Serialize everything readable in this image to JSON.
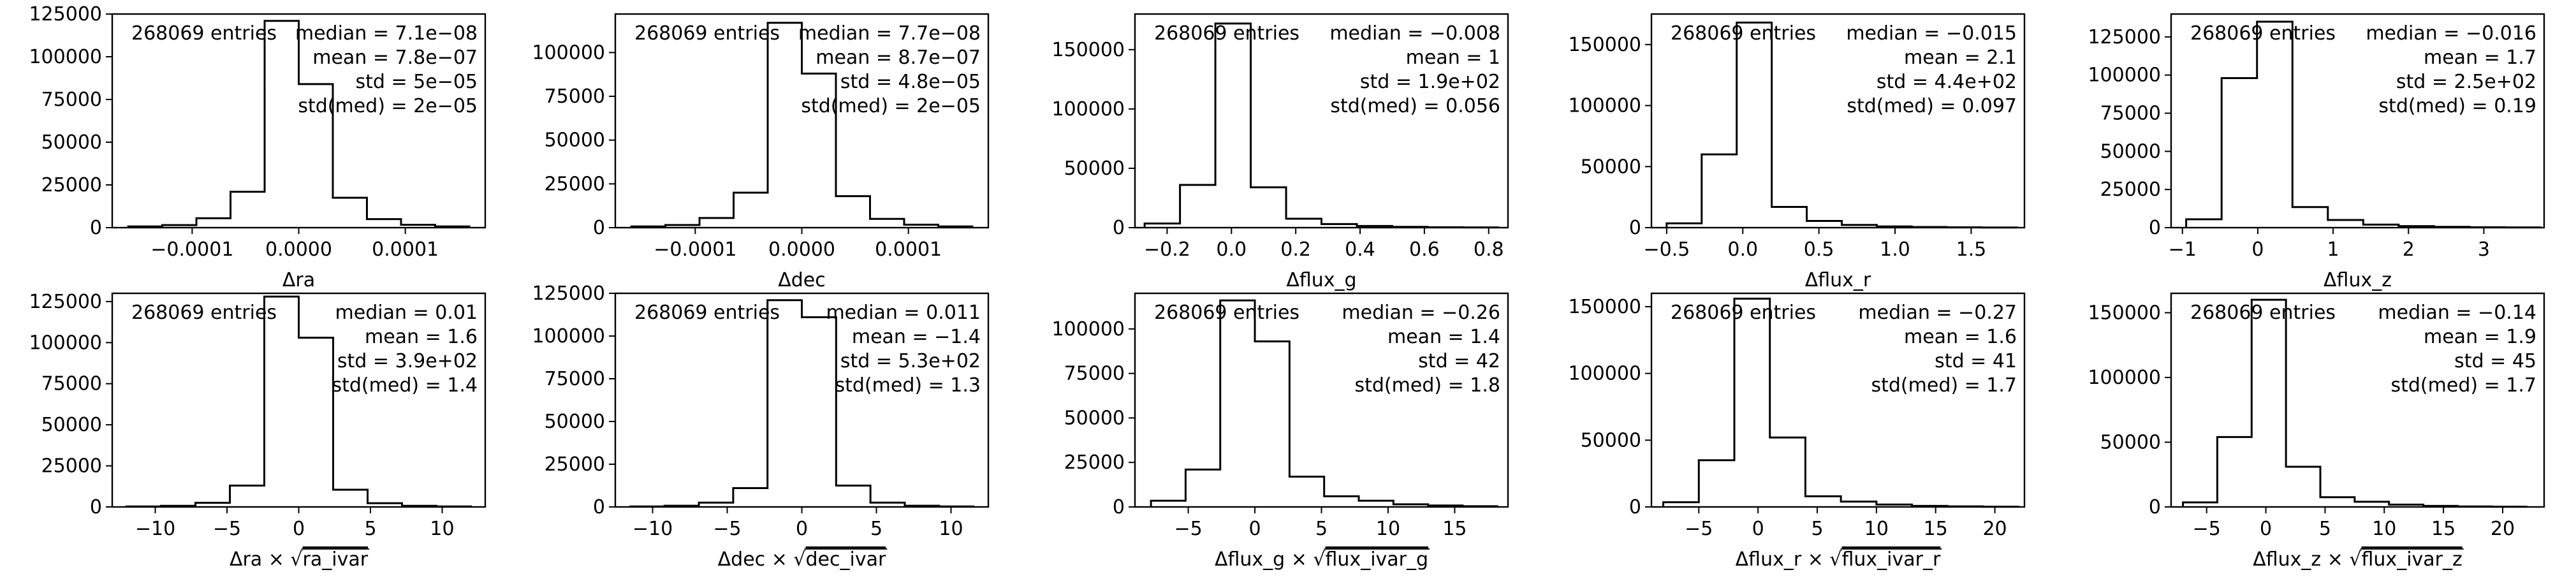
{
  "chart_data": [
    {
      "type": "bar",
      "name": "ra",
      "x_label": "Δra",
      "x_label_sqrt": "",
      "entries": "268069 entries",
      "stats": [
        "median = 7.1e−08",
        "mean = 7.8e−07",
        "std = 5e−05",
        "std(med) = 2e−05"
      ],
      "xlim": [
        -0.000175,
        0.000175
      ],
      "ylim": [
        0,
        125000
      ],
      "x_ticks": [
        -0.0001,
        0,
        0.0001
      ],
      "x_tick_labels": [
        "−0.0001",
        "0.0000",
        "0.0001"
      ],
      "y_ticks": [
        0,
        25000,
        50000,
        75000,
        100000,
        125000
      ],
      "y_tick_labels": [
        "0",
        "25000",
        "50000",
        "75000",
        "100000",
        "125000"
      ],
      "bin_edges": [
        -0.00016,
        -0.000128,
        -9.6e-05,
        -6.4e-05,
        -3.2e-05,
        0,
        3.2e-05,
        6.4e-05,
        9.6e-05,
        0.000128,
        0.00016
      ],
      "counts": [
        700,
        1500,
        5500,
        21000,
        121000,
        84000,
        17500,
        5000,
        1700,
        700
      ]
    },
    {
      "type": "bar",
      "name": "dec",
      "x_label": "Δdec",
      "x_label_sqrt": "",
      "entries": "268069 entries",
      "stats": [
        "median = 7.7e−08",
        "mean = 8.7e−07",
        "std = 4.8e−05",
        "std(med) = 2e−05"
      ],
      "xlim": [
        -0.000175,
        0.000175
      ],
      "ylim": [
        0,
        122000
      ],
      "x_ticks": [
        -0.0001,
        0,
        0.0001
      ],
      "x_tick_labels": [
        "−0.0001",
        "0.0000",
        "0.0001"
      ],
      "y_ticks": [
        0,
        25000,
        50000,
        75000,
        100000
      ],
      "y_tick_labels": [
        "0",
        "25000",
        "50000",
        "75000",
        "100000"
      ],
      "bin_edges": [
        -0.00016,
        -0.000128,
        -9.6e-05,
        -6.4e-05,
        -3.2e-05,
        0,
        3.2e-05,
        6.4e-05,
        9.6e-05,
        0.000128,
        0.00016
      ],
      "counts": [
        700,
        1500,
        5500,
        20000,
        117000,
        88000,
        18000,
        5000,
        1700,
        700
      ]
    },
    {
      "type": "bar",
      "name": "flux_g",
      "x_label": "Δflux_g",
      "x_label_sqrt": "",
      "entries": "268069 entries",
      "stats": [
        "median = −0.008",
        "mean = 1",
        "std = 1.9e+02",
        "std(med) = 0.056"
      ],
      "xlim": [
        -0.3,
        0.86
      ],
      "ylim": [
        0,
        180000
      ],
      "x_ticks": [
        -0.2,
        0,
        0.2,
        0.4,
        0.6,
        0.8
      ],
      "x_tick_labels": [
        "−0.2",
        "0.0",
        "0.2",
        "0.4",
        "0.6",
        "0.8"
      ],
      "y_ticks": [
        0,
        50000,
        100000,
        150000
      ],
      "y_tick_labels": [
        "0",
        "50000",
        "100000",
        "150000"
      ],
      "bin_edges": [
        -0.27,
        -0.16,
        -0.05,
        0.06,
        0.17,
        0.28,
        0.39,
        0.5,
        0.61,
        0.72,
        0.83
      ],
      "counts": [
        3500,
        36000,
        172000,
        34000,
        7500,
        3000,
        1400,
        700,
        350,
        200
      ]
    },
    {
      "type": "bar",
      "name": "flux_r",
      "x_label": "Δflux_r",
      "x_label_sqrt": "",
      "entries": "268069 entries",
      "stats": [
        "median = −0.015",
        "mean = 2.1",
        "std = 4.4e+02",
        "std(med) = 0.097"
      ],
      "xlim": [
        -0.6,
        1.85
      ],
      "ylim": [
        0,
        175000
      ],
      "x_ticks": [
        -0.5,
        0,
        0.5,
        1.0,
        1.5
      ],
      "x_tick_labels": [
        "−0.5",
        "0.0",
        "0.5",
        "1.0",
        "1.5"
      ],
      "y_ticks": [
        0,
        50000,
        100000,
        150000
      ],
      "y_tick_labels": [
        "0",
        "50000",
        "100000",
        "150000"
      ],
      "bin_edges": [
        -0.5,
        -0.27,
        -0.04,
        0.19,
        0.42,
        0.65,
        0.88,
        1.11,
        1.34,
        1.57,
        1.8
      ],
      "counts": [
        3500,
        60000,
        168000,
        17000,
        5500,
        2200,
        1000,
        500,
        250,
        150
      ]
    },
    {
      "type": "bar",
      "name": "flux_z",
      "x_label": "Δflux_z",
      "x_label_sqrt": "",
      "entries": "268069 entries",
      "stats": [
        "median = −0.016",
        "mean = 1.7",
        "std = 2.5e+02",
        "std(med) = 0.19"
      ],
      "xlim": [
        -1.15,
        3.8
      ],
      "ylim": [
        0,
        140000
      ],
      "x_ticks": [
        -1,
        0,
        1,
        2,
        3
      ],
      "x_tick_labels": [
        "−1",
        "0",
        "1",
        "2",
        "3"
      ],
      "y_ticks": [
        0,
        25000,
        50000,
        75000,
        100000,
        125000
      ],
      "y_tick_labels": [
        "0",
        "25000",
        "50000",
        "75000",
        "100000",
        "125000"
      ],
      "bin_edges": [
        -0.95,
        -0.48,
        -0.01,
        0.46,
        0.93,
        1.4,
        1.87,
        2.34,
        2.81,
        3.28,
        3.75
      ],
      "counts": [
        5500,
        98000,
        135000,
        13500,
        5000,
        2000,
        1000,
        500,
        250,
        150
      ]
    },
    {
      "type": "bar",
      "name": "ra_norm",
      "x_label": "Δra × ",
      "x_label_sqrt": "ra_ivar",
      "entries": "268069 entries",
      "stats": [
        "median = 0.01",
        "mean = 1.6",
        "std = 3.9e+02",
        "std(med) = 1.4"
      ],
      "xlim": [
        -13,
        13
      ],
      "ylim": [
        0,
        130000
      ],
      "x_ticks": [
        -10,
        -5,
        0,
        5,
        10
      ],
      "x_tick_labels": [
        "−10",
        "−5",
        "0",
        "5",
        "10"
      ],
      "y_ticks": [
        0,
        25000,
        50000,
        75000,
        100000,
        125000
      ],
      "y_tick_labels": [
        "0",
        "25000",
        "50000",
        "75000",
        "100000",
        "125000"
      ],
      "bin_edges": [
        -12,
        -9.6,
        -7.2,
        -4.8,
        -2.4,
        0,
        2.4,
        4.8,
        7.2,
        9.6,
        12
      ],
      "counts": [
        300,
        700,
        2500,
        13000,
        128000,
        103000,
        10500,
        2300,
        700,
        300
      ]
    },
    {
      "type": "bar",
      "name": "dec_norm",
      "x_label": "Δdec × ",
      "x_label_sqrt": "dec_ivar",
      "entries": "268069 entries",
      "stats": [
        "median = 0.011",
        "mean = −1.4",
        "std = 5.3e+02",
        "std(med) = 1.3"
      ],
      "xlim": [
        -12.5,
        12.5
      ],
      "ylim": [
        0,
        125000
      ],
      "x_ticks": [
        -10,
        -5,
        0,
        5,
        10
      ],
      "x_tick_labels": [
        "−10",
        "−5",
        "0",
        "5",
        "10"
      ],
      "y_ticks": [
        0,
        25000,
        50000,
        75000,
        100000,
        125000
      ],
      "y_tick_labels": [
        "0",
        "25000",
        "50000",
        "75000",
        "100000",
        "125000"
      ],
      "bin_edges": [
        -11.5,
        -9.2,
        -6.9,
        -4.6,
        -2.3,
        0,
        2.3,
        4.6,
        6.9,
        9.2,
        11.5
      ],
      "counts": [
        300,
        700,
        2500,
        11000,
        121000,
        111000,
        12500,
        2500,
        700,
        300
      ]
    },
    {
      "type": "bar",
      "name": "flux_g_norm",
      "x_label": "Δflux_g × ",
      "x_label_sqrt": "flux_ivar_g",
      "entries": "268069 entries",
      "stats": [
        "median = −0.26",
        "mean = 1.4",
        "std = 42",
        "std(med) = 1.8"
      ],
      "xlim": [
        -9,
        19
      ],
      "ylim": [
        0,
        120000
      ],
      "x_ticks": [
        -5,
        0,
        5,
        10,
        15
      ],
      "x_tick_labels": [
        "−5",
        "0",
        "5",
        "10",
        "15"
      ],
      "y_ticks": [
        0,
        25000,
        50000,
        75000,
        100000
      ],
      "y_tick_labels": [
        "0",
        "25000",
        "50000",
        "75000",
        "100000"
      ],
      "bin_edges": [
        -7.8,
        -5.2,
        -2.6,
        0,
        2.6,
        5.2,
        7.8,
        10.4,
        13,
        15.6,
        18.2
      ],
      "counts": [
        3500,
        21000,
        116000,
        93000,
        17000,
        6000,
        3500,
        1500,
        800,
        400
      ]
    },
    {
      "type": "bar",
      "name": "flux_r_norm",
      "x_label": "Δflux_r × ",
      "x_label_sqrt": "flux_ivar_r",
      "entries": "268069 entries",
      "stats": [
        "median = −0.27",
        "mean = 1.6",
        "std = 41",
        "std(med) = 1.7"
      ],
      "xlim": [
        -9,
        22.5
      ],
      "ylim": [
        0,
        160000
      ],
      "x_ticks": [
        -5,
        0,
        5,
        10,
        15,
        20
      ],
      "x_tick_labels": [
        "−5",
        "0",
        "5",
        "10",
        "15",
        "20"
      ],
      "y_ticks": [
        0,
        50000,
        100000,
        150000
      ],
      "y_tick_labels": [
        "0",
        "50000",
        "100000",
        "150000"
      ],
      "bin_edges": [
        -8,
        -5,
        -2,
        1,
        4,
        7,
        10,
        13,
        16,
        19,
        22
      ],
      "counts": [
        3500,
        35000,
        156000,
        52000,
        8000,
        4000,
        1800,
        800,
        400,
        200
      ]
    },
    {
      "type": "bar",
      "name": "flux_z_norm",
      "x_label": "Δflux_z × ",
      "x_label_sqrt": "flux_ivar_z",
      "entries": "268069 entries",
      "stats": [
        "median = −0.14",
        "mean = 1.9",
        "std = 45",
        "std(med) = 1.7"
      ],
      "xlim": [
        -8,
        23.5
      ],
      "ylim": [
        0,
        165000
      ],
      "x_ticks": [
        -5,
        0,
        5,
        10,
        15,
        20
      ],
      "x_tick_labels": [
        "−5",
        "0",
        "5",
        "10",
        "15",
        "20"
      ],
      "y_ticks": [
        0,
        50000,
        100000,
        150000
      ],
      "y_tick_labels": [
        "0",
        "50000",
        "100000",
        "150000"
      ],
      "bin_edges": [
        -7,
        -4.1,
        -1.2,
        1.7,
        4.6,
        7.5,
        10.4,
        13.3,
        16.2,
        19.1,
        22
      ],
      "counts": [
        3500,
        54000,
        160000,
        31000,
        7500,
        4000,
        1800,
        800,
        400,
        200
      ]
    }
  ]
}
